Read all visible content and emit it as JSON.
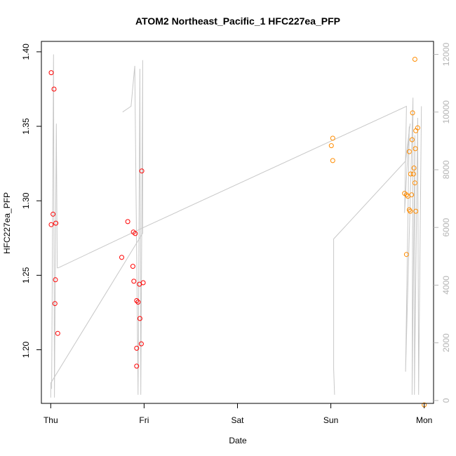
{
  "chart_data": {
    "type": "scatter",
    "title": "ATOM2 Northeast_Pacific_1 HFC227ea_PFP",
    "xlabel": "Date",
    "ylabel": "HFC227ea_PFP",
    "x_ticks": [
      {
        "day": 0,
        "label": "Thu"
      },
      {
        "day": 1,
        "label": "Fri"
      },
      {
        "day": 2,
        "label": "Sat"
      },
      {
        "day": 3,
        "label": "Sun"
      },
      {
        "day": 4,
        "label": "Mon"
      }
    ],
    "xlim": [
      -0.1,
      4.1
    ],
    "ylim": [
      1.164,
      1.407
    ],
    "y_ticks": [
      1.2,
      1.25,
      1.3,
      1.35,
      1.4
    ],
    "y_tick_labels": [
      "1.20",
      "1.25",
      "1.30",
      "1.35",
      "1.40"
    ],
    "y2lim": [
      -100,
      12450
    ],
    "y2_ticks": [
      0,
      2000,
      4000,
      6000,
      8000,
      10000,
      12000
    ],
    "y2_tick_labels": [
      "0",
      "2000",
      "4000",
      "6000",
      "8000",
      "10000",
      "12000"
    ],
    "colors": {
      "series1": "#ff0000",
      "series2": "#ff8c00",
      "altitude": "#c8c8c8",
      "right_axis": "#b4b4b4"
    },
    "series": [
      {
        "color": "#ff0000",
        "points": [
          {
            "x": 0.005,
            "y": 1.386
          },
          {
            "x": 0.005,
            "y": 1.284
          },
          {
            "x": 0.025,
            "y": 1.291
          },
          {
            "x": 0.035,
            "y": 1.375
          },
          {
            "x": 0.055,
            "y": 1.285
          },
          {
            "x": 0.05,
            "y": 1.247
          },
          {
            "x": 0.045,
            "y": 1.231
          },
          {
            "x": 0.075,
            "y": 1.211
          },
          {
            "x": 0.76,
            "y": 1.262
          },
          {
            "x": 0.825,
            "y": 1.286
          },
          {
            "x": 0.885,
            "y": 1.279
          },
          {
            "x": 0.905,
            "y": 1.278
          },
          {
            "x": 0.88,
            "y": 1.256
          },
          {
            "x": 0.89,
            "y": 1.246
          },
          {
            "x": 0.92,
            "y": 1.233
          },
          {
            "x": 0.935,
            "y": 1.232
          },
          {
            "x": 0.95,
            "y": 1.244
          },
          {
            "x": 0.99,
            "y": 1.245
          },
          {
            "x": 0.955,
            "y": 1.221
          },
          {
            "x": 0.92,
            "y": 1.201
          },
          {
            "x": 0.97,
            "y": 1.204
          },
          {
            "x": 0.92,
            "y": 1.189
          },
          {
            "x": 0.975,
            "y": 1.32
          }
        ]
      },
      {
        "color": "#ff8c00",
        "points": [
          {
            "x": 3.02,
            "y": 1.342
          },
          {
            "x": 3.005,
            "y": 1.337
          },
          {
            "x": 3.02,
            "y": 1.327
          },
          {
            "x": 3.79,
            "y": 1.305
          },
          {
            "x": 3.81,
            "y": 1.304
          },
          {
            "x": 3.825,
            "y": 1.303
          },
          {
            "x": 3.865,
            "y": 1.304
          },
          {
            "x": 3.84,
            "y": 1.294
          },
          {
            "x": 3.85,
            "y": 1.293
          },
          {
            "x": 3.81,
            "y": 1.264
          },
          {
            "x": 3.84,
            "y": 1.333
          },
          {
            "x": 3.87,
            "y": 1.341
          },
          {
            "x": 3.875,
            "y": 1.359
          },
          {
            "x": 3.855,
            "y": 1.318
          },
          {
            "x": 3.885,
            "y": 1.318
          },
          {
            "x": 3.89,
            "y": 1.322
          },
          {
            "x": 3.9,
            "y": 1.312
          },
          {
            "x": 3.905,
            "y": 1.335
          },
          {
            "x": 3.91,
            "y": 1.347
          },
          {
            "x": 3.93,
            "y": 1.349
          },
          {
            "x": 3.91,
            "y": 1.293
          },
          {
            "x": 3.9,
            "y": 1.395
          },
          {
            "x": 4.0,
            "y": 1.163
          }
        ]
      }
    ],
    "altitude_line": {
      "color": "#c8c8c8",
      "axis": "right",
      "points": [
        {
          "x": 0.01,
          "y": 400
        },
        {
          "x": 0.03,
          "y": 12000
        },
        {
          "x": 0.04,
          "y": 100
        },
        {
          "x": 0.06,
          "y": 9600
        },
        {
          "x": 0.07,
          "y": 4600
        },
        {
          "x": 0.08,
          "y": 4600
        },
        {
          "x": 0.995,
          "y": 6000
        },
        {
          "x": 3.81,
          "y": 10200
        },
        {
          "x": 3.79,
          "y": 6500
        },
        {
          "x": 3.84,
          "y": 9500
        },
        {
          "x": 3.8,
          "y": 1000
        },
        {
          "x": 3.88,
          "y": 10500
        },
        {
          "x": 3.87,
          "y": 200
        },
        {
          "x": 3.9,
          "y": 9200
        },
        {
          "x": 3.895,
          "y": 200
        },
        {
          "x": 3.93,
          "y": 9800
        },
        {
          "x": 3.94,
          "y": 200
        },
        {
          "x": 3.97,
          "y": 10200
        }
      ]
    },
    "altitude_line_2": {
      "color": "#c8c8c8",
      "axis": "right",
      "points": [
        {
          "x": 0.0,
          "y": 100
        },
        {
          "x": 0.0,
          "y": 600
        },
        {
          "x": 0.985,
          "y": 5800
        },
        {
          "x": 0.985,
          "y": 11800
        },
        {
          "x": 0.965,
          "y": 200
        },
        {
          "x": 0.955,
          "y": 11500
        },
        {
          "x": 0.935,
          "y": 200
        },
        {
          "x": 0.9,
          "y": 11600
        },
        {
          "x": 0.86,
          "y": 10200
        },
        {
          "x": 0.77,
          "y": 10000
        }
      ]
    },
    "altitude_line_3": {
      "color": "#c8c8c8",
      "axis": "right",
      "points": [
        {
          "x": 3.04,
          "y": 200
        },
        {
          "x": 3.03,
          "y": 1100
        },
        {
          "x": 3.03,
          "y": 5600
        },
        {
          "x": 3.8,
          "y": 8300
        },
        {
          "x": 3.85,
          "y": 9600
        }
      ]
    }
  }
}
